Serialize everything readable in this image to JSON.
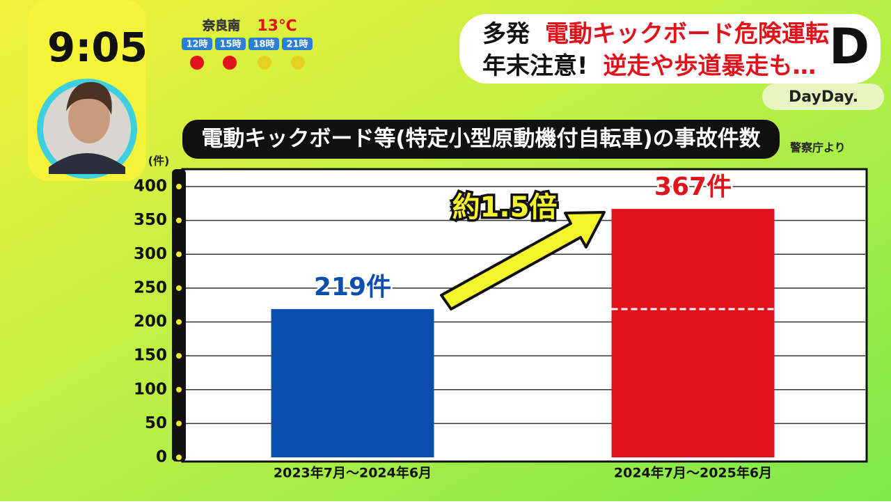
{
  "screen": {
    "clock": "9:05",
    "weather": {
      "place": "奈良南",
      "temp": "13℃",
      "times": [
        "12時",
        "15時",
        "18時",
        "21時"
      ]
    },
    "headline": {
      "line1": [
        "多発",
        "電動キックボード危険運転"
      ],
      "line2": [
        "年末注意!",
        "逆走や歩道暴走も…"
      ]
    },
    "logo": "DayDay.",
    "logo_mark": "D"
  },
  "chart_data": {
    "type": "bar",
    "title": "電動キックボード等(特定小型原動機付自転車)の事故件数",
    "source": "警察庁より",
    "y_label": "(件)",
    "annotation": "約1.5倍",
    "categories": [
      "2023年7月～2024年6月",
      "2024年7月～2025年6月"
    ],
    "values": [
      219,
      367
    ],
    "value_labels": [
      "219件",
      "367件"
    ],
    "colors": [
      "#0b4fae",
      "#e2121b"
    ],
    "ylim": [
      0,
      400
    ],
    "yticks": [
      0,
      50,
      100,
      150,
      200,
      250,
      300,
      350,
      400
    ],
    "grid": true
  }
}
